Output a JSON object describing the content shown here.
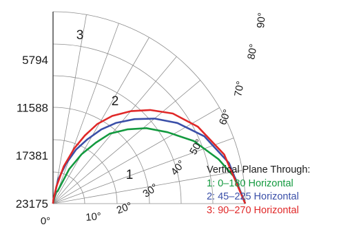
{
  "chart_data": {
    "type": "line",
    "coordinate_system": "polar (quarter, candela distribution)",
    "radial_ticks": [
      5794,
      11588,
      17381,
      23175
    ],
    "radial_max": 23175,
    "angle_ticks": [
      "0°",
      "10°",
      "20°",
      "30°",
      "40°",
      "50°",
      "60°",
      "70°",
      "80°",
      "90°"
    ],
    "angle_range": [
      0,
      90
    ],
    "grid": true,
    "legend_title": "Vertical Plane Through:",
    "legend_position": "bottom-right",
    "series": [
      {
        "name": "1: 0–180 Horizontal",
        "curve_label": "1",
        "color": "#139a3f",
        "r_by_angle": [
          [
            0,
            23175
          ],
          [
            5,
            23120
          ],
          [
            10,
            23000
          ],
          [
            14,
            21700
          ],
          [
            20,
            21600
          ],
          [
            25,
            18600
          ],
          [
            30,
            16300
          ],
          [
            35,
            14200
          ],
          [
            39,
            12300
          ],
          [
            45,
            10500
          ],
          [
            51,
            8700
          ],
          [
            58,
            6900
          ],
          [
            66,
            4600
          ],
          [
            75,
            2500
          ],
          [
            82,
            1000
          ],
          [
            90,
            0
          ]
        ]
      },
      {
        "name": "2: 45–225 Horizontal",
        "curve_label": "2",
        "color": "#3a4fa8",
        "r_by_angle": [
          [
            0,
            23175
          ],
          [
            6,
            22800
          ],
          [
            12,
            20200
          ],
          [
            18,
            18100
          ],
          [
            23,
            16100
          ],
          [
            28,
            14400
          ],
          [
            33,
            12500
          ],
          [
            38,
            10800
          ],
          [
            44,
            9000
          ],
          [
            50,
            7200
          ],
          [
            57,
            5300
          ],
          [
            66,
            3200
          ],
          [
            77,
            1400
          ],
          [
            90,
            0
          ]
        ]
      },
      {
        "name": "3: 90–270 Horizontal",
        "curve_label": "3",
        "color": "#e02828",
        "r_by_angle": [
          [
            0,
            23175
          ],
          [
            5,
            22700
          ],
          [
            11,
            21100
          ],
          [
            16,
            18500
          ],
          [
            21,
            16000
          ],
          [
            25,
            14100
          ],
          [
            29,
            12200
          ],
          [
            34,
            10400
          ],
          [
            40,
            8600
          ],
          [
            46,
            6900
          ],
          [
            53,
            5100
          ],
          [
            62,
            3400
          ],
          [
            74,
            1700
          ],
          [
            90,
            0
          ]
        ]
      }
    ]
  }
}
